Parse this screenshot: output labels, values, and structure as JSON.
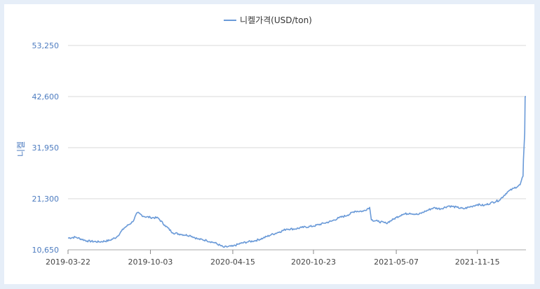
{
  "chart_data": {
    "type": "line",
    "legend": "니켈가격(USD/ton)",
    "ylabel": "니켈",
    "ylim": [
      10650,
      53250
    ],
    "y_ticks": [
      "10,650",
      "21,300",
      "31,950",
      "42,600",
      "53,250"
    ],
    "x_ticks": [
      "2019-03-22",
      "2019-10-03",
      "2020-04-15",
      "2020-10-23",
      "2021-05-07",
      "2021-11-15"
    ],
    "series": [
      {
        "name": "니켈가격(USD/ton)",
        "color": "#6a9ad8",
        "x": [
          "2019-03-22",
          "2019-04-08",
          "2019-05-06",
          "2019-06-03",
          "2019-06-28",
          "2019-07-15",
          "2019-08-02",
          "2019-08-22",
          "2019-09-02",
          "2019-09-18",
          "2019-10-03",
          "2019-10-21",
          "2019-11-06",
          "2019-11-25",
          "2019-12-13",
          "2020-01-06",
          "2020-01-24",
          "2020-02-13",
          "2020-03-04",
          "2020-03-24",
          "2020-04-15",
          "2020-05-04",
          "2020-05-20",
          "2020-06-09",
          "2020-06-26",
          "2020-07-15",
          "2020-08-04",
          "2020-08-21",
          "2020-09-09",
          "2020-09-25",
          "2020-10-23",
          "2020-11-17",
          "2020-12-04",
          "2020-12-22",
          "2021-01-12",
          "2021-01-29",
          "2021-02-18",
          "2021-03-05",
          "2021-03-09",
          "2021-03-24",
          "2021-04-13",
          "2021-04-30",
          "2021-05-07",
          "2021-05-20",
          "2021-06-08",
          "2021-06-28",
          "2021-07-15",
          "2021-08-03",
          "2021-08-20",
          "2021-09-08",
          "2021-09-28",
          "2021-10-13",
          "2021-11-01",
          "2021-11-15",
          "2021-12-01",
          "2021-12-16",
          "2022-01-06",
          "2022-01-25",
          "2022-02-10",
          "2022-02-24",
          "2022-03-03",
          "2022-03-04",
          "2022-03-07",
          "2022-03-08",
          "2022-03-10"
        ],
        "values": [
          13100,
          13300,
          12500,
          12300,
          12600,
          13300,
          15200,
          16500,
          18400,
          17600,
          17400,
          17300,
          15800,
          14200,
          13900,
          13600,
          12900,
          12600,
          12100,
          11200,
          11400,
          12000,
          12300,
          12600,
          13100,
          13800,
          14400,
          15000,
          15000,
          15300,
          15600,
          16200,
          16600,
          17300,
          17900,
          18700,
          18700,
          19500,
          16900,
          16600,
          16200,
          17000,
          17400,
          18000,
          18300,
          18000,
          18700,
          19400,
          19200,
          19800,
          19500,
          19200,
          19700,
          20100,
          19900,
          20400,
          21000,
          22700,
          23500,
          24200,
          26000,
          29500,
          35000,
          42600,
          42600
        ]
      }
    ]
  }
}
